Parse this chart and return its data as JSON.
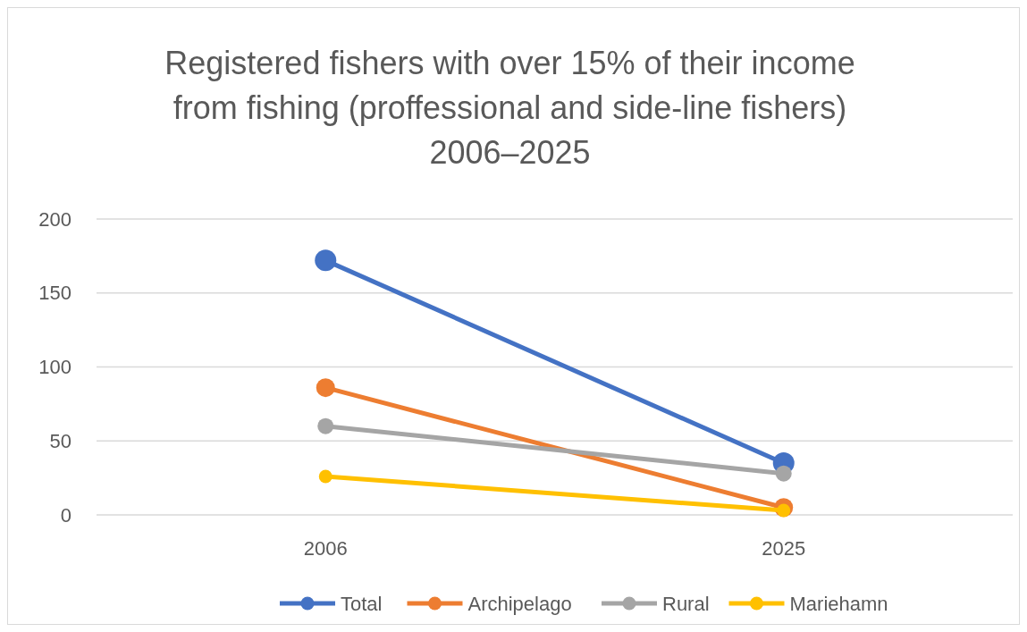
{
  "chart_data": {
    "type": "line",
    "title": "Registered fishers with over 15% of their income\nfrom fishing (proffessional and side-line fishers)\n2006–2025",
    "categories": [
      "2006",
      "2025"
    ],
    "series": [
      {
        "name": "Total",
        "color": "#4472c4",
        "values": [
          172,
          35
        ]
      },
      {
        "name": "Archipelago",
        "color": "#ed7d31",
        "values": [
          86,
          5
        ]
      },
      {
        "name": "Rural",
        "color": "#a5a5a5",
        "values": [
          60,
          28
        ]
      },
      {
        "name": "Mariehamn",
        "color": "#ffc000",
        "values": [
          26,
          3
        ]
      }
    ],
    "ylim": [
      0,
      200
    ],
    "yticks": [
      0,
      50,
      100,
      150,
      200
    ],
    "grid": "y",
    "legend": "bottom",
    "marker": "circle",
    "line_style": "solid"
  }
}
